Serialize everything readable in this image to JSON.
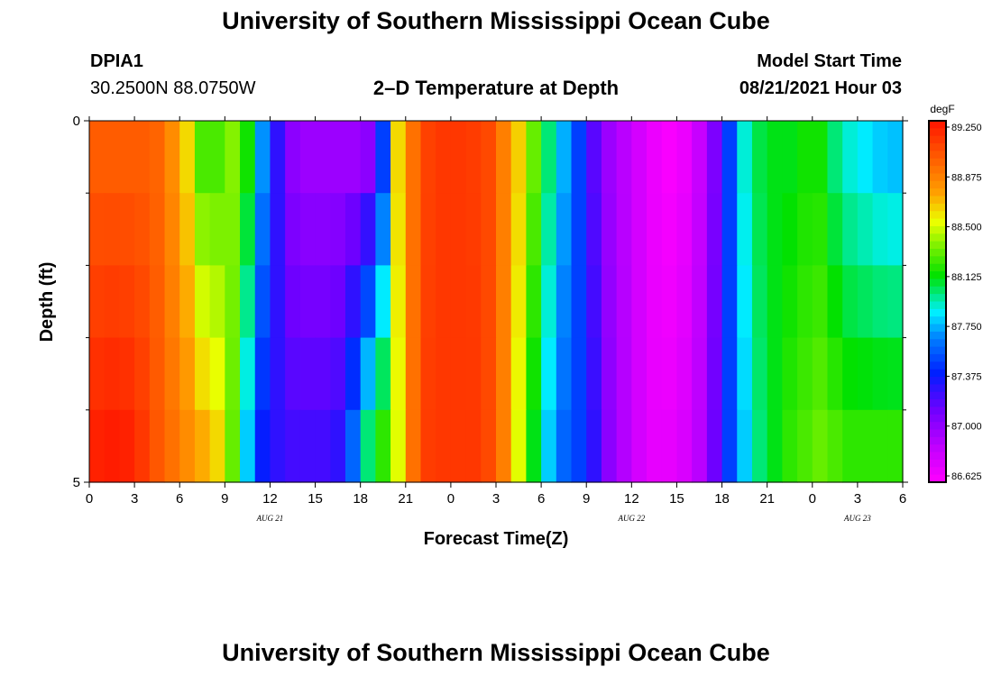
{
  "header": {
    "title_top": "University of Southern Mississippi Ocean Cube",
    "title_bottom": "University of Southern Mississippi Ocean Cube",
    "station_id": "DPIA1",
    "station_coords": "30.2500N  88.0750W",
    "plot_title": "2–D Temperature at Depth",
    "model_start_label": "Model Start Time",
    "model_start_value": "08/21/2021 Hour 03"
  },
  "chart_data": {
    "type": "heatmap",
    "title": "2–D Temperature at Depth",
    "xlabel": "Forecast Time(Z)",
    "ylabel": "Depth (ft)",
    "x_start_hour": 0,
    "x_span_hours": 54,
    "x_ticks": [
      {
        "hours": 0,
        "label": "0"
      },
      {
        "hours": 3,
        "label": "3"
      },
      {
        "hours": 6,
        "label": "6"
      },
      {
        "hours": 9,
        "label": "9"
      },
      {
        "hours": 12,
        "label": "12"
      },
      {
        "hours": 15,
        "label": "15"
      },
      {
        "hours": 18,
        "label": "18"
      },
      {
        "hours": 21,
        "label": "21"
      },
      {
        "hours": 24,
        "label": "0"
      },
      {
        "hours": 27,
        "label": "3"
      },
      {
        "hours": 30,
        "label": "6"
      },
      {
        "hours": 33,
        "label": "9"
      },
      {
        "hours": 36,
        "label": "12"
      },
      {
        "hours": 39,
        "label": "15"
      },
      {
        "hours": 42,
        "label": "18"
      },
      {
        "hours": 45,
        "label": "21"
      },
      {
        "hours": 48,
        "label": "0"
      },
      {
        "hours": 51,
        "label": "3"
      },
      {
        "hours": 54,
        "label": "6"
      }
    ],
    "date_labels": [
      {
        "hours": 12,
        "label": "AUG 21"
      },
      {
        "hours": 36,
        "label": "AUG 22"
      },
      {
        "hours": 51,
        "label": "AUG 23"
      }
    ],
    "ylim": [
      0,
      5
    ],
    "y_tick_labels": [
      {
        "depth": 0,
        "label": "0"
      },
      {
        "depth": 5,
        "label": "5"
      }
    ],
    "y_minor_ticks": [
      1,
      2,
      3,
      4
    ],
    "depth_layers": [
      0,
      1,
      2,
      3,
      4
    ],
    "colorbar": {
      "unit": "degF",
      "min": 86.625,
      "max": 89.25,
      "tick_values": [
        89.25,
        88.875,
        88.5,
        88.125,
        87.75,
        87.375,
        87.0,
        86.625
      ],
      "tick_labels": [
        "89.250",
        "88.875",
        "88.500",
        "88.125",
        "87.750",
        "87.375",
        "87.000",
        "86.625"
      ]
    },
    "time_step_hours": 1,
    "surface_profile_degF": [
      88.98,
      88.98,
      88.98,
      88.98,
      88.95,
      88.8,
      88.6,
      88.25,
      88.25,
      88.35,
      88.15,
      87.7,
      87.3,
      87.05,
      87.0,
      87.0,
      87.0,
      87.0,
      87.05,
      87.5,
      88.6,
      88.9,
      89.08,
      89.12,
      89.12,
      89.1,
      89.05,
      88.85,
      88.62,
      88.3,
      88.0,
      87.75,
      87.5,
      87.2,
      87.0,
      86.9,
      86.8,
      86.7,
      86.65,
      86.7,
      86.85,
      87.1,
      87.5,
      87.9,
      88.05,
      88.1,
      88.1,
      88.15,
      88.15,
      88.0,
      87.9,
      87.85,
      87.8,
      87.78
    ],
    "bottom_profile_degF": [
      89.2,
      89.22,
      89.2,
      89.12,
      89.0,
      88.9,
      88.8,
      88.7,
      88.6,
      88.3,
      87.8,
      87.4,
      87.3,
      87.25,
      87.25,
      87.25,
      87.3,
      87.6,
      88.0,
      88.2,
      88.5,
      88.9,
      89.1,
      89.12,
      89.12,
      89.12,
      89.05,
      88.85,
      88.5,
      88.1,
      87.8,
      87.6,
      87.5,
      87.3,
      87.05,
      86.92,
      86.8,
      86.72,
      86.72,
      86.78,
      86.9,
      87.15,
      87.5,
      87.8,
      88.0,
      88.1,
      88.2,
      88.25,
      88.3,
      88.25,
      88.2,
      88.2,
      88.2,
      88.2
    ]
  }
}
